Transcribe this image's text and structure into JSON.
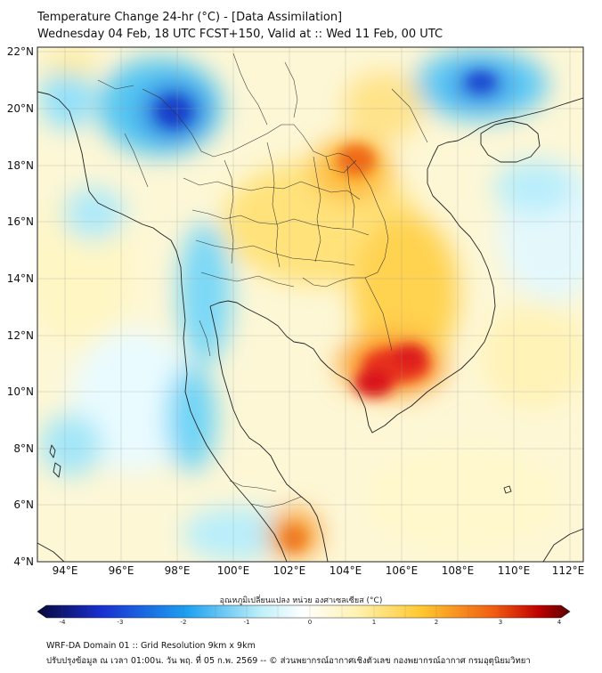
{
  "title_line1": "Temperature Change 24-hr (°C) - [Data Assimilation]",
  "title_line2": "Wednesday 04 Feb, 18 UTC FCST+150, Valid at :: Wed 11 Feb, 00 UTC",
  "lat_labels": [
    "22°N",
    "20°N",
    "18°N",
    "16°N",
    "14°N",
    "12°N",
    "10°N",
    "8°N",
    "6°N",
    "4°N"
  ],
  "lon_labels": [
    "94°E",
    "96°E",
    "98°E",
    "100°E",
    "102°E",
    "104°E",
    "106°E",
    "108°E",
    "110°E",
    "112°E"
  ],
  "colorbar": {
    "label": "อุณหภูมิเปลี่ยนแปลง หน่วย องศาเซลเซียส (°C)",
    "ticks": [
      "-4",
      "-3",
      "-2",
      "-1",
      "0",
      "1",
      "2",
      "3",
      "4"
    ],
    "colors": [
      "#08083a",
      "#1a2fd0",
      "#1ca0f0",
      "#bff0f8",
      "#ffffff",
      "#fff2b0",
      "#ffc830",
      "#f05a10",
      "#c00000",
      "#5a0000"
    ]
  },
  "footer_line1": "WRF-DA Domain 01 :: Grid Resolution 9km x 9km",
  "footer_line2": "ปรับปรุงข้อมูล ณ เวลา 01:00น. วัน พฤ. ที่ 05 ก.พ. 2569 -- © ส่วนพยากรณ์อากาศเชิงตัวเลข กองพยากรณ์อากาศ กรมอุตุนิยมวิทยา",
  "fields": {
    "warm_cores": [
      "Gulf of Thailand / Cambodia coast",
      "Northeast Thailand / Laos",
      "Peninsula south"
    ],
    "cold_cores": [
      "Myanmar north",
      "Guangxi / Gulf of Tonkin north",
      "Andaman coast"
    ]
  }
}
